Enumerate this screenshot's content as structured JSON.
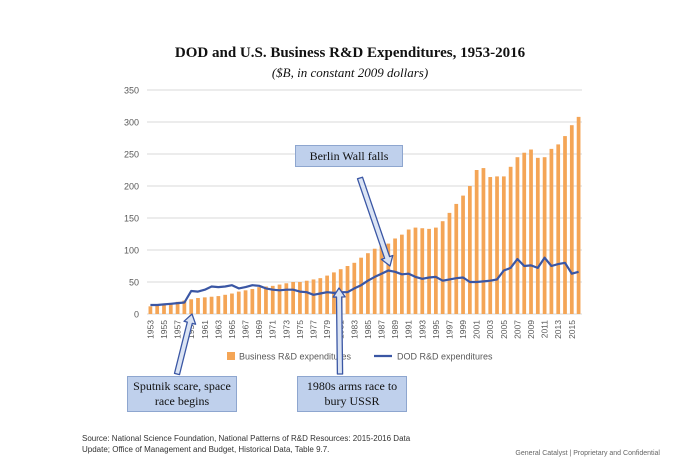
{
  "header": {
    "title": "DOD and U.S. Business R&D Expenditures, 1953-2016",
    "subtitle": "($B, in constant 2009 dollars)"
  },
  "colors": {
    "bars": "#f4a556",
    "line": "#3a56a4",
    "callout_bg": "#bfd0ec",
    "grid": "#d9d9d9"
  },
  "chart_data": {
    "type": "bar",
    "title": "DOD and U.S. Business R&D Expenditures, 1953-2016",
    "subtitle": "($B, in constant 2009 dollars)",
    "ylim": [
      0,
      350
    ],
    "yticks": [
      0,
      50,
      100,
      150,
      200,
      250,
      300,
      350
    ],
    "grid": "horizontal",
    "legend_position": "bottom",
    "x_tick_labels": [
      "1953",
      "1955",
      "1957",
      "1959",
      "1961",
      "1963",
      "1965",
      "1967",
      "1969",
      "1971",
      "1973",
      "1975",
      "1977",
      "1979",
      "1981",
      "1983",
      "1985",
      "1987",
      "1989",
      "1991",
      "1993",
      "1995",
      "1997",
      "1999",
      "2001",
      "2003",
      "2005",
      "2007",
      "2009",
      "2011",
      "2013",
      "2015"
    ],
    "x": [
      1953,
      1954,
      1955,
      1956,
      1957,
      1958,
      1959,
      1960,
      1961,
      1962,
      1963,
      1964,
      1965,
      1966,
      1967,
      1968,
      1969,
      1970,
      1971,
      1972,
      1973,
      1974,
      1975,
      1976,
      1977,
      1978,
      1979,
      1980,
      1981,
      1982,
      1983,
      1984,
      1985,
      1986,
      1987,
      1988,
      1989,
      1990,
      1991,
      1992,
      1993,
      1994,
      1995,
      1996,
      1997,
      1998,
      1999,
      2000,
      2001,
      2002,
      2003,
      2004,
      2005,
      2006,
      2007,
      2008,
      2009,
      2010,
      2011,
      2012,
      2013,
      2014,
      2015,
      2016
    ],
    "series": [
      {
        "name": "Business R&D expenditures",
        "type": "bar",
        "values": [
          12,
          13,
          15,
          17,
          19,
          21,
          23,
          25,
          26,
          27,
          28,
          30,
          32,
          35,
          37,
          39,
          42,
          43,
          44,
          46,
          48,
          50,
          50,
          52,
          54,
          56,
          60,
          65,
          70,
          75,
          80,
          88,
          95,
          102,
          106,
          110,
          118,
          124,
          132,
          135,
          134,
          133,
          135,
          145,
          158,
          172,
          185,
          200,
          225,
          228,
          214,
          215,
          215,
          230,
          245,
          252,
          257,
          244,
          245,
          258,
          265,
          278,
          295,
          308
        ]
      },
      {
        "name": "DOD R&D expenditures",
        "type": "line",
        "values": [
          14,
          14,
          15,
          16,
          17,
          18,
          36,
          35,
          38,
          43,
          42,
          43,
          45,
          40,
          42,
          45,
          44,
          40,
          38,
          37,
          38,
          38,
          35,
          34,
          30,
          32,
          34,
          33,
          34,
          34,
          40,
          45,
          52,
          58,
          63,
          68,
          66,
          62,
          63,
          58,
          55,
          57,
          58,
          52,
          54,
          56,
          57,
          50,
          50,
          51,
          52,
          54,
          68,
          72,
          86,
          75,
          76,
          72,
          88,
          75,
          78,
          80,
          63,
          66
        ]
      }
    ],
    "annotations": [
      {
        "text": "Berlin Wall falls",
        "target_x": 1989
      },
      {
        "text": "Sputnik scare, space race begins",
        "target_x": 1958
      },
      {
        "text": "1980s arms race to bury USSR",
        "target_x": 1982
      }
    ]
  },
  "callouts": {
    "berlin": "Berlin Wall falls",
    "sputnik_line1": "Sputnik scare, space",
    "sputnik_line2": "race begins",
    "arms_line1": "1980s arms race to",
    "arms_line2": "bury USSR"
  },
  "source": {
    "line1": "Source: National Science Foundation, National Patterns of R&D Resources: 2015-2016 Data",
    "line2": "Update; Office of Management and Budget,  Historical Data, Table 9.7."
  },
  "footer": "General Catalyst | Proprietary and Confidential"
}
